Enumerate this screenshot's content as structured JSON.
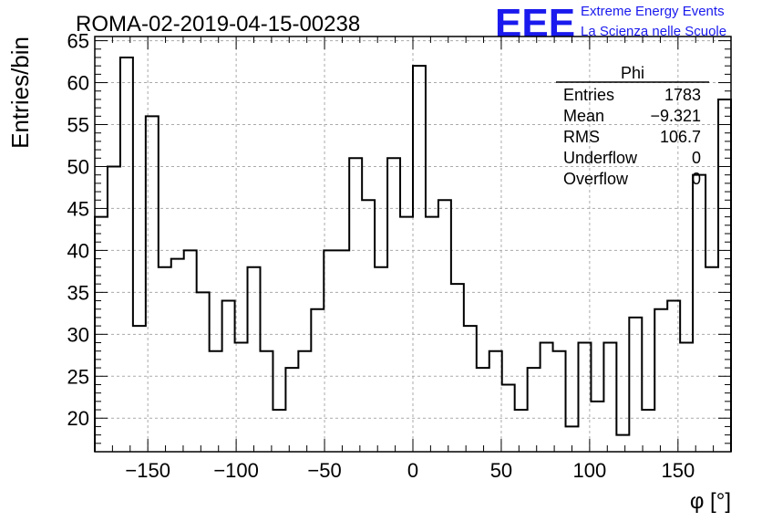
{
  "title": "ROMA-02-2019-04-15-00238",
  "logo": {
    "mark": "EEE",
    "line1": "Extreme Energy Events",
    "line2": "La Scienza nelle Scuole",
    "color": "#1a1aee"
  },
  "stats": {
    "name": "Phi",
    "rows": [
      {
        "label": "Entries",
        "value": "1783"
      },
      {
        "label": "Mean",
        "value": "−9.321"
      },
      {
        "label": "RMS",
        "value": "106.7"
      },
      {
        "label": "Underflow",
        "value": "0"
      },
      {
        "label": "Overflow",
        "value": "0"
      }
    ]
  },
  "chart_data": {
    "type": "histogram",
    "title": "ROMA-02-2019-04-15-00238",
    "xlabel": "φ [°]",
    "ylabel": "Entries/bin",
    "xlim": [
      -180,
      180
    ],
    "ylim": [
      16,
      65.5
    ],
    "bin_edges_start": -180,
    "bin_width": 7.2,
    "values": [
      44,
      50,
      63,
      31,
      56,
      38,
      39,
      40,
      35,
      28,
      34,
      29,
      38,
      28,
      21,
      26,
      28,
      33,
      40,
      40,
      51,
      46,
      38,
      51,
      44,
      62,
      44,
      46,
      36,
      31,
      26,
      28,
      24,
      21,
      26,
      29,
      28,
      19,
      29,
      22,
      29,
      18,
      32,
      21,
      33,
      34,
      29,
      49,
      38,
      58
    ],
    "xticks": [
      -150,
      -100,
      -50,
      0,
      50,
      100,
      150
    ],
    "yticks": [
      20,
      25,
      30,
      35,
      40,
      45,
      50,
      55,
      60,
      65
    ],
    "grid": true,
    "line_color": "#000000"
  }
}
